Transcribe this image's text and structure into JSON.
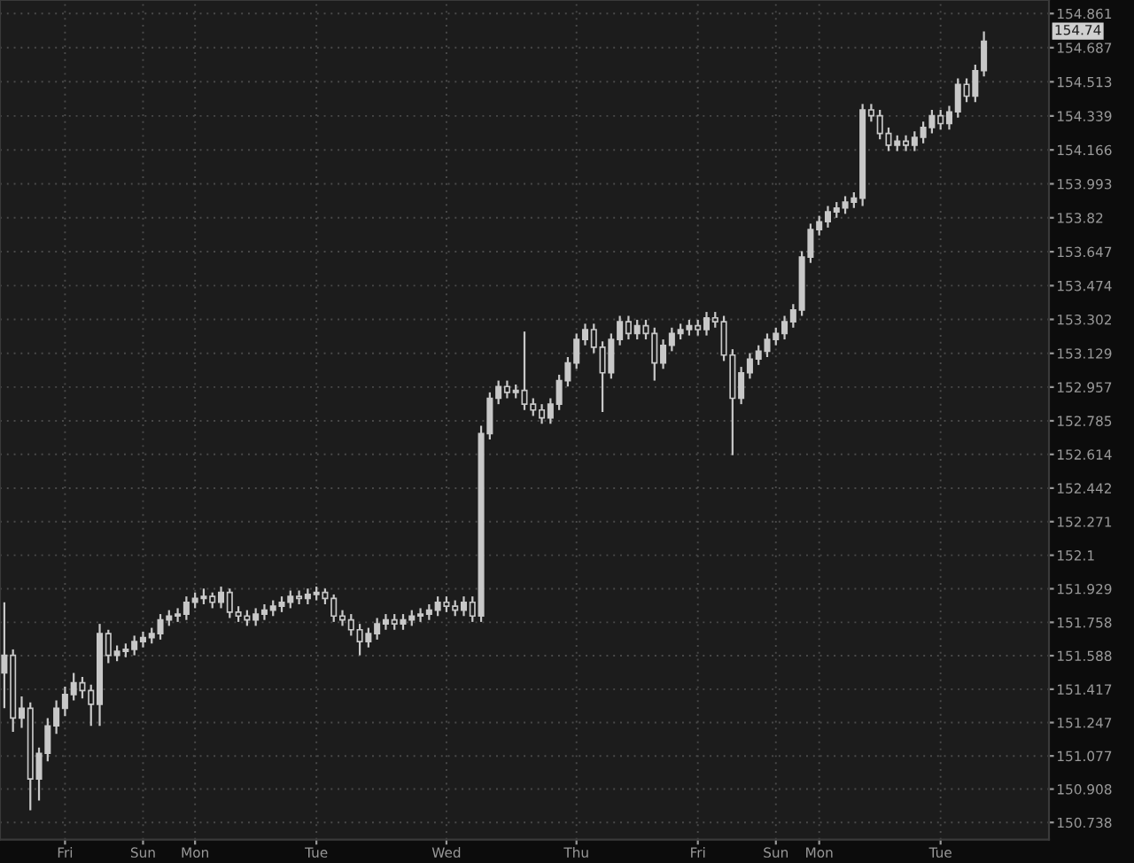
{
  "chart_data": {
    "type": "candlestick",
    "color": "#c8c8c8",
    "grid": true,
    "categories": [
      null,
      null,
      null,
      null,
      null,
      null,
      null,
      "Fri",
      null,
      null,
      null,
      null,
      null,
      null,
      null,
      null,
      "Sun",
      null,
      null,
      null,
      null,
      null,
      "Mon",
      null,
      null,
      null,
      null,
      null,
      null,
      null,
      null,
      null,
      null,
      null,
      null,
      null,
      "Tue",
      null,
      null,
      null,
      null,
      null,
      null,
      null,
      null,
      null,
      null,
      null,
      null,
      null,
      null,
      "Wed",
      null,
      null,
      null,
      null,
      null,
      null,
      null,
      null,
      null,
      null,
      null,
      null,
      null,
      null,
      "Thu",
      null,
      null,
      null,
      null,
      null,
      null,
      null,
      null,
      null,
      null,
      null,
      null,
      null,
      "Fri",
      null,
      null,
      null,
      null,
      null,
      null,
      null,
      null,
      "Sun",
      null,
      null,
      null,
      null,
      "Mon",
      null,
      null,
      null,
      null,
      null,
      null,
      null,
      null,
      null,
      null,
      null,
      null,
      null,
      "Tue",
      null,
      null,
      null,
      null,
      null
    ],
    "ohlc": [
      [
        151.5,
        151.86,
        151.32,
        151.59
      ],
      [
        151.59,
        151.62,
        151.2,
        151.27
      ],
      [
        151.27,
        151.38,
        151.22,
        151.32
      ],
      [
        151.32,
        151.35,
        150.8,
        150.96
      ],
      [
        150.96,
        151.12,
        150.85,
        151.09
      ],
      [
        151.09,
        151.27,
        151.05,
        151.23
      ],
      [
        151.23,
        151.36,
        151.19,
        151.32
      ],
      [
        151.32,
        151.43,
        151.28,
        151.39
      ],
      [
        151.39,
        151.5,
        151.36,
        151.45
      ],
      [
        151.45,
        151.48,
        151.37,
        151.41
      ],
      [
        151.41,
        151.44,
        151.23,
        151.34
      ],
      [
        151.34,
        151.75,
        151.23,
        151.7
      ],
      [
        151.7,
        151.72,
        151.55,
        151.59
      ],
      [
        151.59,
        151.64,
        151.56,
        151.61
      ],
      [
        151.61,
        151.65,
        151.58,
        151.62
      ],
      [
        151.62,
        151.69,
        151.59,
        151.66
      ],
      [
        151.66,
        151.71,
        151.63,
        151.68
      ],
      [
        151.68,
        151.73,
        151.65,
        151.7
      ],
      [
        151.7,
        151.8,
        151.67,
        151.77
      ],
      [
        151.77,
        151.82,
        151.74,
        151.79
      ],
      [
        151.79,
        151.83,
        151.76,
        151.8
      ],
      [
        151.8,
        151.89,
        151.77,
        151.86
      ],
      [
        151.86,
        151.91,
        151.83,
        151.88
      ],
      [
        151.88,
        151.93,
        151.85,
        151.89
      ],
      [
        151.89,
        151.91,
        151.83,
        151.86
      ],
      [
        151.86,
        151.94,
        151.83,
        151.91
      ],
      [
        151.91,
        151.93,
        151.78,
        151.81
      ],
      [
        151.81,
        151.84,
        151.76,
        151.79
      ],
      [
        151.79,
        151.82,
        151.74,
        151.77
      ],
      [
        151.77,
        151.83,
        151.74,
        151.8
      ],
      [
        151.8,
        151.85,
        151.77,
        151.82
      ],
      [
        151.82,
        151.87,
        151.79,
        151.84
      ],
      [
        151.84,
        151.89,
        151.81,
        151.86
      ],
      [
        151.86,
        151.92,
        151.83,
        151.89
      ],
      [
        151.89,
        151.92,
        151.85,
        151.88
      ],
      [
        151.88,
        151.93,
        151.85,
        151.9
      ],
      [
        151.9,
        151.94,
        151.87,
        151.91
      ],
      [
        151.91,
        151.93,
        151.85,
        151.88
      ],
      [
        151.88,
        151.9,
        151.76,
        151.79
      ],
      [
        151.79,
        151.82,
        151.74,
        151.77
      ],
      [
        151.77,
        151.8,
        151.69,
        151.72
      ],
      [
        151.72,
        151.75,
        151.59,
        151.66
      ],
      [
        151.66,
        151.73,
        151.63,
        151.7
      ],
      [
        151.7,
        151.78,
        151.67,
        151.75
      ],
      [
        151.75,
        151.8,
        151.72,
        151.77
      ],
      [
        151.77,
        151.8,
        151.72,
        151.75
      ],
      [
        151.75,
        151.8,
        151.72,
        151.77
      ],
      [
        151.77,
        151.82,
        151.74,
        151.79
      ],
      [
        151.79,
        151.83,
        151.76,
        151.8
      ],
      [
        151.8,
        151.85,
        151.77,
        151.82
      ],
      [
        151.82,
        151.89,
        151.79,
        151.86
      ],
      [
        151.86,
        151.89,
        151.81,
        151.84
      ],
      [
        151.84,
        151.87,
        151.79,
        151.82
      ],
      [
        151.82,
        151.89,
        151.79,
        151.86
      ],
      [
        151.86,
        151.89,
        151.76,
        151.79
      ],
      [
        151.79,
        152.76,
        151.76,
        152.72
      ],
      [
        152.72,
        152.93,
        152.69,
        152.9
      ],
      [
        152.9,
        152.99,
        152.87,
        152.96
      ],
      [
        152.96,
        152.99,
        152.9,
        152.93
      ],
      [
        152.93,
        152.97,
        152.9,
        152.94
      ],
      [
        152.94,
        153.24,
        152.84,
        152.87
      ],
      [
        152.87,
        152.9,
        152.81,
        152.84
      ],
      [
        152.84,
        152.87,
        152.77,
        152.8
      ],
      [
        152.8,
        152.9,
        152.77,
        152.87
      ],
      [
        152.87,
        153.02,
        152.84,
        152.99
      ],
      [
        152.99,
        153.11,
        152.96,
        153.08
      ],
      [
        153.08,
        153.23,
        153.05,
        153.2
      ],
      [
        153.2,
        153.28,
        153.17,
        153.25
      ],
      [
        153.25,
        153.28,
        153.13,
        153.16
      ],
      [
        153.16,
        153.19,
        152.83,
        153.03
      ],
      [
        153.03,
        153.23,
        153.0,
        153.2
      ],
      [
        153.2,
        153.32,
        153.17,
        153.29
      ],
      [
        153.29,
        153.32,
        153.2,
        153.23
      ],
      [
        153.23,
        153.3,
        153.2,
        153.27
      ],
      [
        153.27,
        153.3,
        153.2,
        153.23
      ],
      [
        153.23,
        153.26,
        152.99,
        153.08
      ],
      [
        153.08,
        153.2,
        153.05,
        153.17
      ],
      [
        153.17,
        153.26,
        153.14,
        153.23
      ],
      [
        153.23,
        153.28,
        153.2,
        153.25
      ],
      [
        153.25,
        153.3,
        153.22,
        153.27
      ],
      [
        153.27,
        153.3,
        153.22,
        153.25
      ],
      [
        153.25,
        153.34,
        153.22,
        153.31
      ],
      [
        153.31,
        153.34,
        153.26,
        153.29
      ],
      [
        153.29,
        153.32,
        153.09,
        153.12
      ],
      [
        153.12,
        153.15,
        152.61,
        152.9
      ],
      [
        152.9,
        153.06,
        152.87,
        153.03
      ],
      [
        153.03,
        153.13,
        153.0,
        153.1
      ],
      [
        153.1,
        153.17,
        153.07,
        153.14
      ],
      [
        153.14,
        153.23,
        153.11,
        153.2
      ],
      [
        153.2,
        153.26,
        153.17,
        153.23
      ],
      [
        153.23,
        153.32,
        153.2,
        153.29
      ],
      [
        153.29,
        153.38,
        153.26,
        153.35
      ],
      [
        153.35,
        153.65,
        153.32,
        153.62
      ],
      [
        153.62,
        153.79,
        153.59,
        153.76
      ],
      [
        153.76,
        153.83,
        153.73,
        153.8
      ],
      [
        153.8,
        153.88,
        153.77,
        153.85
      ],
      [
        153.85,
        153.9,
        153.82,
        153.87
      ],
      [
        153.87,
        153.93,
        153.84,
        153.9
      ],
      [
        153.9,
        153.95,
        153.87,
        153.92
      ],
      [
        153.92,
        154.4,
        153.88,
        154.37
      ],
      [
        154.37,
        154.4,
        154.31,
        154.34
      ],
      [
        154.34,
        154.37,
        154.22,
        154.25
      ],
      [
        154.25,
        154.28,
        154.16,
        154.19
      ],
      [
        154.19,
        154.24,
        154.16,
        154.21
      ],
      [
        154.21,
        154.24,
        154.16,
        154.19
      ],
      [
        154.19,
        154.26,
        154.16,
        154.23
      ],
      [
        154.23,
        154.31,
        154.2,
        154.28
      ],
      [
        154.28,
        154.37,
        154.25,
        154.34
      ],
      [
        154.34,
        154.37,
        154.27,
        154.3
      ],
      [
        154.3,
        154.39,
        154.27,
        154.36
      ],
      [
        154.36,
        154.53,
        154.33,
        154.5
      ],
      [
        154.5,
        154.53,
        154.41,
        154.44
      ],
      [
        154.44,
        154.6,
        154.41,
        154.57
      ],
      [
        154.57,
        154.77,
        154.54,
        154.72
      ]
    ],
    "ylim": [
      150.65,
      154.93
    ],
    "yticks": [
      154.861,
      154.687,
      154.513,
      154.339,
      154.166,
      153.993,
      153.82,
      153.647,
      153.474,
      153.302,
      153.129,
      152.957,
      152.785,
      152.614,
      152.442,
      152.271,
      152.1,
      151.929,
      151.758,
      151.588,
      151.417,
      151.247,
      151.077,
      150.908,
      150.738
    ],
    "annotations": [
      "154.74"
    ]
  }
}
